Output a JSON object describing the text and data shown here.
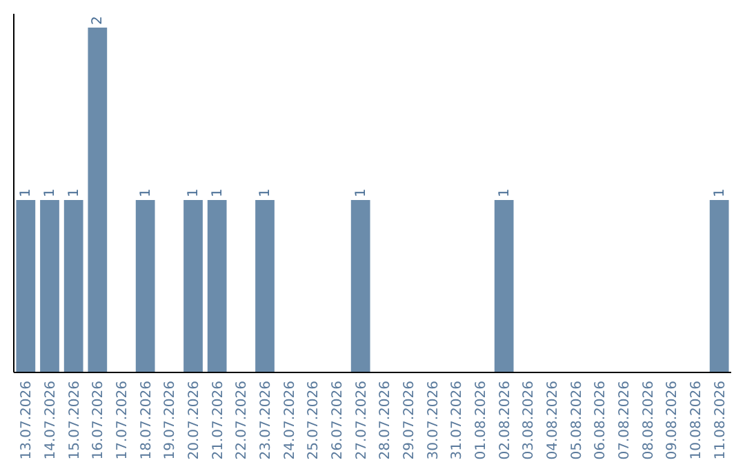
{
  "chart_data": {
    "type": "bar",
    "categories": [
      "13.07.2026",
      "14.07.2026",
      "15.07.2026",
      "16.07.2026",
      "17.07.2026",
      "18.07.2026",
      "19.07.2026",
      "20.07.2026",
      "21.07.2026",
      "22.07.2026",
      "23.07.2026",
      "24.07.2026",
      "25.07.2026",
      "26.07.2026",
      "27.07.2026",
      "28.07.2026",
      "29.07.2026",
      "30.07.2026",
      "31.07.2026",
      "01.08.2026",
      "02.08.2026",
      "03.08.2026",
      "04.08.2026",
      "05.08.2026",
      "06.08.2026",
      "07.08.2026",
      "08.08.2026",
      "09.08.2026",
      "10.08.2026",
      "11.08.2026"
    ],
    "values": [
      1,
      1,
      1,
      2,
      0,
      1,
      0,
      1,
      1,
      0,
      1,
      0,
      0,
      0,
      1,
      0,
      0,
      0,
      0,
      0,
      1,
      0,
      0,
      0,
      0,
      0,
      0,
      0,
      0,
      1
    ],
    "value_labels": [
      "1",
      "1",
      "1",
      "2",
      null,
      "1",
      null,
      "1",
      "1",
      null,
      "1",
      null,
      null,
      null,
      "1",
      null,
      null,
      null,
      null,
      null,
      "1",
      null,
      null,
      null,
      null,
      null,
      null,
      null,
      null,
      "1"
    ],
    "color": "#6b8cab",
    "ylim": [
      0,
      2.08
    ],
    "tick_labels": "x",
    "grid": false
  }
}
